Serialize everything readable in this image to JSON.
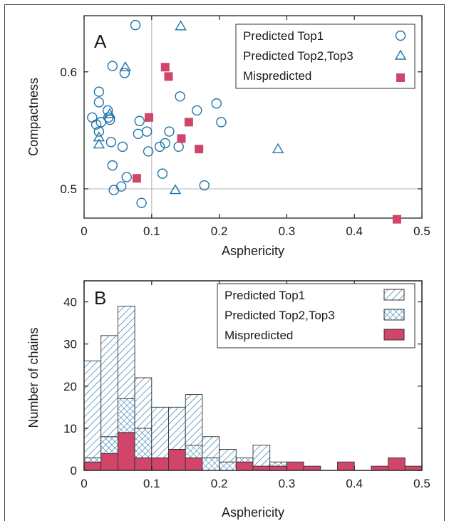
{
  "chart_data": [
    {
      "panel": "A",
      "type": "scatter",
      "xlabel": "Asphericity",
      "ylabel": "Compactness",
      "xlim": [
        0,
        0.5
      ],
      "ylim": [
        0.475,
        0.648
      ],
      "xticks": [
        0,
        0.1,
        0.2,
        0.3,
        0.4,
        0.5
      ],
      "xtick_labels": [
        "0",
        "0.1",
        "0.2",
        "0.3",
        "0.4",
        "0.5"
      ],
      "yticks": [
        0.5,
        0.6
      ],
      "ytick_labels": [
        "0.5",
        "0.6"
      ],
      "reference_lines": {
        "x": 0.1,
        "y": 0.5
      },
      "legend_position": "top-right",
      "series": [
        {
          "name": "Predicted Top1",
          "marker": "circle",
          "color": "#1f74a8",
          "points": [
            [
              0.076,
              0.64
            ],
            [
              0.042,
              0.605
            ],
            [
              0.06,
              0.599
            ],
            [
              0.022,
              0.583
            ],
            [
              0.022,
              0.574
            ],
            [
              0.035,
              0.567
            ],
            [
              0.036,
              0.561
            ],
            [
              0.038,
              0.559
            ],
            [
              0.012,
              0.561
            ],
            [
              0.018,
              0.555
            ],
            [
              0.022,
              0.549
            ],
            [
              0.025,
              0.557
            ],
            [
              0.082,
              0.558
            ],
            [
              0.08,
              0.547
            ],
            [
              0.093,
              0.549
            ],
            [
              0.04,
              0.54
            ],
            [
              0.057,
              0.536
            ],
            [
              0.095,
              0.532
            ],
            [
              0.112,
              0.536
            ],
            [
              0.12,
              0.539
            ],
            [
              0.126,
              0.549
            ],
            [
              0.14,
              0.536
            ],
            [
              0.142,
              0.579
            ],
            [
              0.167,
              0.567
            ],
            [
              0.196,
              0.573
            ],
            [
              0.203,
              0.557
            ],
            [
              0.042,
              0.52
            ],
            [
              0.063,
              0.51
            ],
            [
              0.055,
              0.502
            ],
            [
              0.044,
              0.499
            ],
            [
              0.085,
              0.488
            ],
            [
              0.116,
              0.513
            ],
            [
              0.178,
              0.503
            ]
          ]
        },
        {
          "name": "Predicted Top2,Top3",
          "marker": "triangle",
          "color": "#1f74a8",
          "points": [
            [
              0.143,
              0.639
            ],
            [
              0.061,
              0.604
            ],
            [
              0.038,
              0.564
            ],
            [
              0.022,
              0.544
            ],
            [
              0.022,
              0.538
            ],
            [
              0.135,
              0.499
            ],
            [
              0.287,
              0.534
            ]
          ]
        },
        {
          "name": "Mispredicted",
          "marker": "square",
          "color": "#d1456b",
          "points": [
            [
              0.12,
              0.604
            ],
            [
              0.125,
              0.596
            ],
            [
              0.096,
              0.561
            ],
            [
              0.155,
              0.557
            ],
            [
              0.144,
              0.543
            ],
            [
              0.17,
              0.534
            ],
            [
              0.078,
              0.509
            ],
            [
              0.463,
              0.474
            ]
          ]
        }
      ]
    },
    {
      "panel": "B",
      "type": "bar",
      "stacked": true,
      "xlabel": "Asphericity",
      "ylabel": "Number of chains",
      "xlim": [
        0,
        0.5
      ],
      "ylim": [
        0,
        45
      ],
      "bin_width": 0.025,
      "bin_starts": [
        0,
        0.025,
        0.05,
        0.075,
        0.1,
        0.125,
        0.15,
        0.175,
        0.2,
        0.225,
        0.25,
        0.275,
        0.3,
        0.325,
        0.35,
        0.375,
        0.4,
        0.425,
        0.45,
        0.475
      ],
      "xticks": [
        0,
        0.1,
        0.2,
        0.3,
        0.4,
        0.5
      ],
      "xtick_labels": [
        "0",
        "0.1",
        "0.2",
        "0.3",
        "0.4",
        "0.5"
      ],
      "yticks": [
        0,
        10,
        20,
        30,
        40
      ],
      "ytick_labels": [
        "0",
        "10",
        "20",
        "30",
        "40"
      ],
      "legend_position": "top-right",
      "series": [
        {
          "name": "Predicted Top1",
          "fill": "hatch",
          "color": "#1f74a8",
          "values": [
            23,
            24,
            22,
            12,
            12,
            10,
            12,
            5,
            3,
            0,
            5,
            0,
            0,
            0,
            0,
            0,
            0,
            0,
            0,
            0
          ]
        },
        {
          "name": "Predicted Top2,Top3",
          "fill": "crosshatch",
          "color": "#1f74a8",
          "values": [
            1,
            4,
            8,
            7,
            0,
            0,
            3,
            3,
            2,
            1,
            0,
            1,
            0,
            0,
            0,
            0,
            0,
            0,
            0,
            0
          ]
        },
        {
          "name": "Mispredicted",
          "fill": "solid",
          "color": "#d1456b",
          "values": [
            2,
            4,
            9,
            3,
            3,
            5,
            3,
            0,
            0,
            2,
            1,
            1,
            2,
            1,
            0,
            2,
            0,
            1,
            3,
            1
          ]
        }
      ]
    }
  ]
}
